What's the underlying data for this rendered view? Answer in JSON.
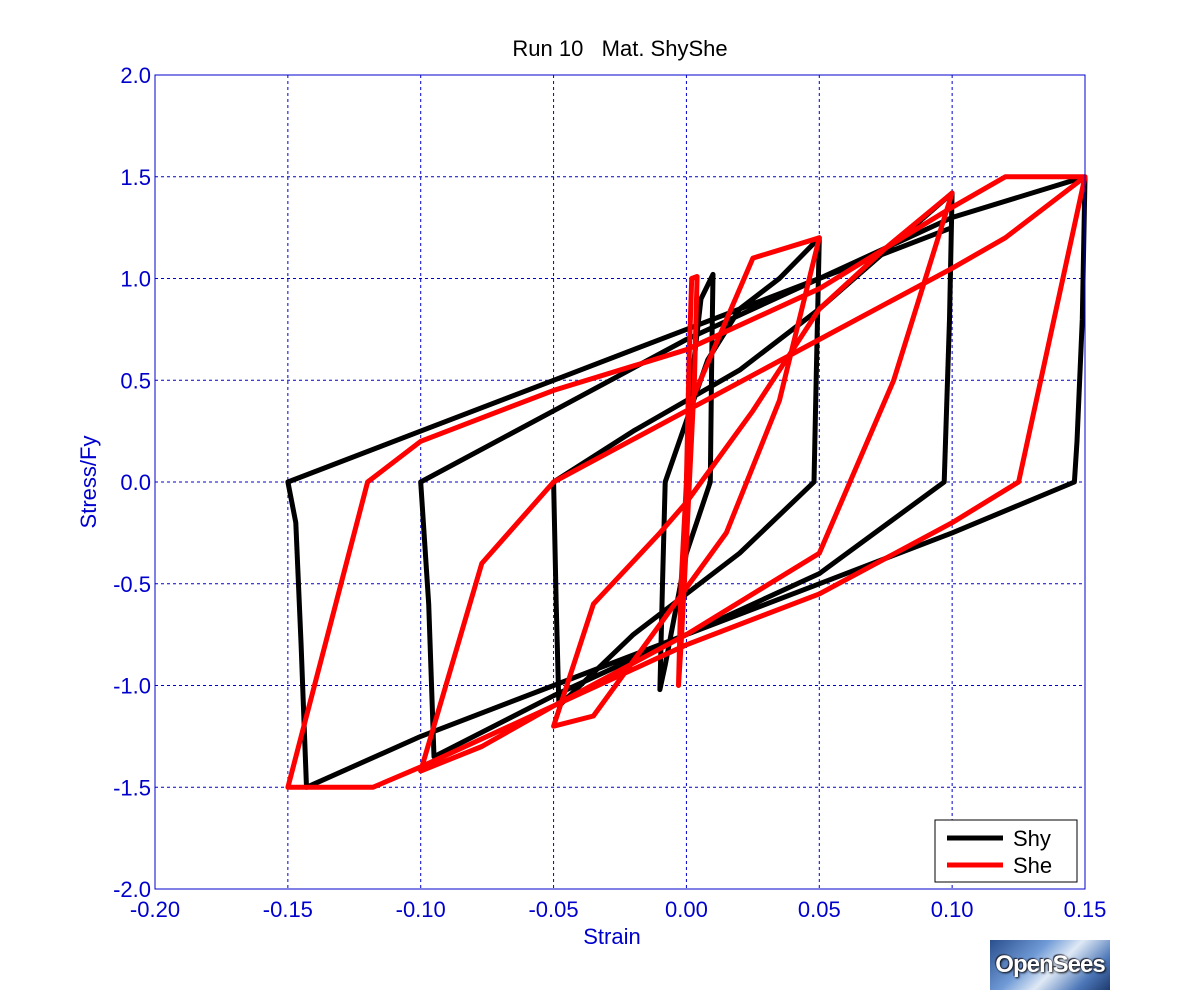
{
  "chart_data": {
    "type": "line",
    "title": "Run 10   Mat. ShyShe",
    "xlabel": "Strain",
    "ylabel": "Stress/Fy",
    "xlim": [
      -0.2,
      0.15
    ],
    "ylim": [
      -2.0,
      2.0
    ],
    "xticks": [
      -0.2,
      -0.15,
      -0.1,
      -0.05,
      0.0,
      0.05,
      0.1,
      0.15
    ],
    "xtick_labels": [
      "-0.20",
      "-0.15",
      "-0.10",
      "-0.05",
      "0.00",
      "0.05",
      "0.10",
      "0.15"
    ],
    "yticks": [
      -2.0,
      -1.5,
      -1.0,
      -0.5,
      0.0,
      0.5,
      1.0,
      1.5,
      2.0
    ],
    "ytick_labels": [
      "-2.0",
      "-1.5",
      "-1.0",
      "-0.5",
      "0.0",
      "0.5",
      "1.0",
      "1.5",
      "2.0"
    ],
    "grid": true,
    "legend_position": "bottom-right",
    "series": [
      {
        "name": "Shy",
        "color": "#000000",
        "x": [
          0,
          0.002,
          0.0055,
          0.01,
          0.0095,
          0.009,
          0.0,
          -0.008,
          -0.01,
          -0.009,
          -0.008,
          0.0,
          0.008,
          0.02,
          0.035,
          0.05,
          0.049,
          0.048,
          0.02,
          -0.02,
          -0.048,
          -0.049,
          -0.05,
          -0.02,
          0.02,
          0.05,
          0.1,
          0.099,
          0.097,
          0.05,
          0.0,
          -0.05,
          -0.095,
          -0.097,
          -0.1,
          -0.05,
          0.0,
          0.05,
          0.1,
          0.15,
          0.149,
          0.147,
          0.146,
          0.1,
          0.05,
          0.0,
          -0.05,
          -0.1,
          -0.143,
          -0.145,
          -0.147,
          -0.15,
          -0.1,
          -0.05,
          0.0,
          0.05,
          0.1
        ],
        "y": [
          0,
          0.5,
          0.9,
          1.02,
          0.6,
          0.0,
          -0.35,
          -0.9,
          -1.02,
          -0.5,
          0.0,
          0.3,
          0.6,
          0.85,
          1.0,
          1.2,
          0.6,
          0.0,
          -0.35,
          -0.75,
          -1.1,
          -0.6,
          0.0,
          0.25,
          0.55,
          0.85,
          1.42,
          0.8,
          0.0,
          -0.45,
          -0.75,
          -1.05,
          -1.35,
          -0.6,
          0.0,
          0.35,
          0.7,
          1.0,
          1.3,
          1.5,
          0.8,
          0.2,
          0.0,
          -0.25,
          -0.5,
          -0.75,
          -1.0,
          -1.25,
          -1.5,
          -0.8,
          -0.2,
          0.0,
          0.25,
          0.5,
          0.75,
          1.0,
          1.25
        ]
      },
      {
        "name": "She",
        "color": "#ff0000",
        "x": [
          0,
          0.001,
          0.002,
          0.004,
          0.003,
          0.0,
          -0.002,
          -0.003,
          -0.002,
          0.0,
          0.002,
          0.025,
          0.05,
          0.035,
          0.015,
          -0.01,
          -0.035,
          -0.05,
          -0.035,
          -0.01,
          0.0,
          0.025,
          0.05,
          0.075,
          0.1,
          0.078,
          0.05,
          0.0,
          -0.05,
          -0.077,
          -0.1,
          -0.077,
          -0.05,
          0.0,
          0.05,
          0.1,
          0.12,
          0.15,
          0.125,
          0.1,
          0.05,
          0.0,
          -0.05,
          -0.1,
          -0.118,
          -0.15,
          -0.12,
          -0.1,
          -0.05,
          0.0,
          0.05,
          0.1,
          0.12,
          0.15
        ],
        "y": [
          0,
          0.6,
          1.0,
          1.01,
          0.5,
          -0.3,
          -0.8,
          -1.0,
          -0.5,
          0.0,
          0.4,
          1.1,
          1.2,
          0.4,
          -0.25,
          -0.7,
          -1.15,
          -1.2,
          -0.6,
          -0.25,
          -0.1,
          0.35,
          0.85,
          1.15,
          1.42,
          0.5,
          -0.35,
          -0.75,
          -1.1,
          -1.3,
          -1.42,
          -0.4,
          0.0,
          0.35,
          0.7,
          1.05,
          1.2,
          1.5,
          0.0,
          -0.2,
          -0.55,
          -0.8,
          -1.1,
          -1.4,
          -1.5,
          -1.5,
          0.0,
          0.2,
          0.45,
          0.65,
          0.95,
          1.35,
          1.5,
          1.5
        ]
      }
    ]
  },
  "legend": {
    "items": [
      "Shy",
      "She"
    ]
  },
  "logo_text": "OpenSees"
}
